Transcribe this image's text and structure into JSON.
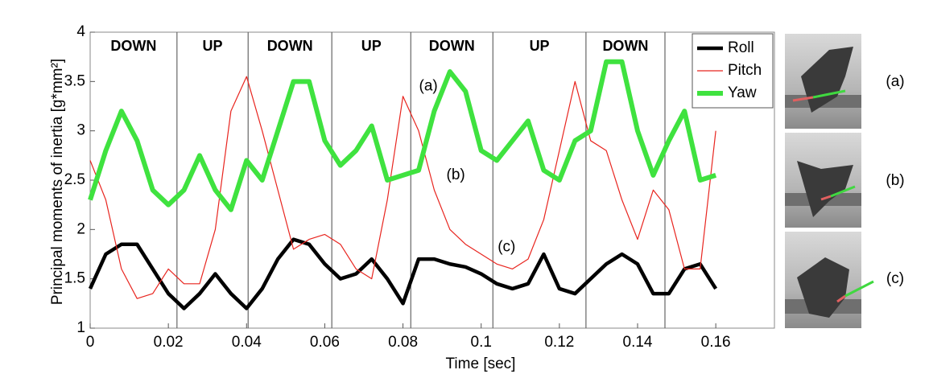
{
  "chart_data": {
    "type": "line",
    "xlabel": "Time [sec]",
    "ylabel": "Principal moments of inertia [g*mm²]",
    "xlim": [
      0,
      0.175
    ],
    "ylim": [
      1,
      4
    ],
    "xticks": [
      0,
      0.02,
      0.04,
      0.06,
      0.08,
      0.1,
      0.12,
      0.14,
      0.16
    ],
    "yticks": [
      1,
      1.5,
      2,
      2.5,
      3,
      3.5,
      4
    ],
    "legend": "upper right",
    "phases": [
      "DOWN",
      "UP",
      "DOWN",
      "UP",
      "DOWN",
      "UP",
      "DOWN"
    ],
    "phase_boundaries": [
      0.0222,
      0.0404,
      0.0618,
      0.082,
      0.103,
      0.1268,
      0.147
    ],
    "annotations": [
      {
        "text": "(a)",
        "x": 0.0865,
        "y": 3.45
      },
      {
        "text": "(b)",
        "x": 0.0935,
        "y": 2.55
      },
      {
        "text": "(c)",
        "x": 0.1065,
        "y": 1.82
      }
    ],
    "x": [
      0,
      0.004,
      0.008,
      0.012,
      0.016,
      0.02,
      0.024,
      0.028,
      0.032,
      0.036,
      0.04,
      0.044,
      0.048,
      0.052,
      0.056,
      0.06,
      0.064,
      0.068,
      0.072,
      0.076,
      0.08,
      0.084,
      0.088,
      0.092,
      0.096,
      0.1,
      0.104,
      0.108,
      0.112,
      0.116,
      0.12,
      0.124,
      0.128,
      0.132,
      0.136,
      0.14,
      0.144,
      0.148,
      0.152,
      0.156,
      0.16
    ],
    "series": [
      {
        "name": "Roll",
        "color": "#000000",
        "values": [
          1.4,
          1.75,
          1.85,
          1.85,
          1.6,
          1.35,
          1.2,
          1.35,
          1.55,
          1.35,
          1.2,
          1.4,
          1.7,
          1.9,
          1.85,
          1.65,
          1.5,
          1.55,
          1.7,
          1.5,
          1.25,
          1.7,
          1.7,
          1.65,
          1.62,
          1.55,
          1.45,
          1.4,
          1.45,
          1.75,
          1.4,
          1.35,
          1.5,
          1.65,
          1.75,
          1.65,
          1.35,
          1.35,
          1.6,
          1.65,
          1.4
        ]
      },
      {
        "name": "Pitch",
        "color": "#e8251f",
        "values": [
          2.7,
          2.3,
          1.6,
          1.3,
          1.35,
          1.6,
          1.45,
          1.45,
          2.0,
          3.2,
          3.55,
          3.0,
          2.4,
          1.8,
          1.9,
          1.95,
          1.85,
          1.6,
          1.5,
          2.3,
          3.35,
          3.0,
          2.4,
          2.0,
          1.85,
          1.75,
          1.65,
          1.6,
          1.7,
          2.1,
          2.8,
          3.5,
          2.9,
          2.8,
          2.3,
          1.9,
          2.4,
          2.2,
          1.6,
          1.6,
          3.0
        ]
      },
      {
        "name": "Yaw",
        "color": "#3fe23f",
        "values": [
          2.3,
          2.8,
          3.2,
          2.9,
          2.4,
          2.25,
          2.4,
          2.75,
          2.4,
          2.2,
          2.7,
          2.5,
          3.0,
          3.5,
          3.5,
          2.9,
          2.65,
          2.8,
          3.05,
          2.5,
          2.55,
          2.6,
          3.2,
          3.6,
          3.4,
          2.8,
          2.7,
          2.9,
          3.1,
          2.6,
          2.5,
          2.9,
          3.0,
          3.7,
          3.7,
          3.0,
          2.55,
          2.9,
          3.2,
          2.5,
          2.55
        ]
      }
    ]
  },
  "photos": {
    "labels": [
      "(a)",
      "(b)",
      "(c)"
    ]
  }
}
